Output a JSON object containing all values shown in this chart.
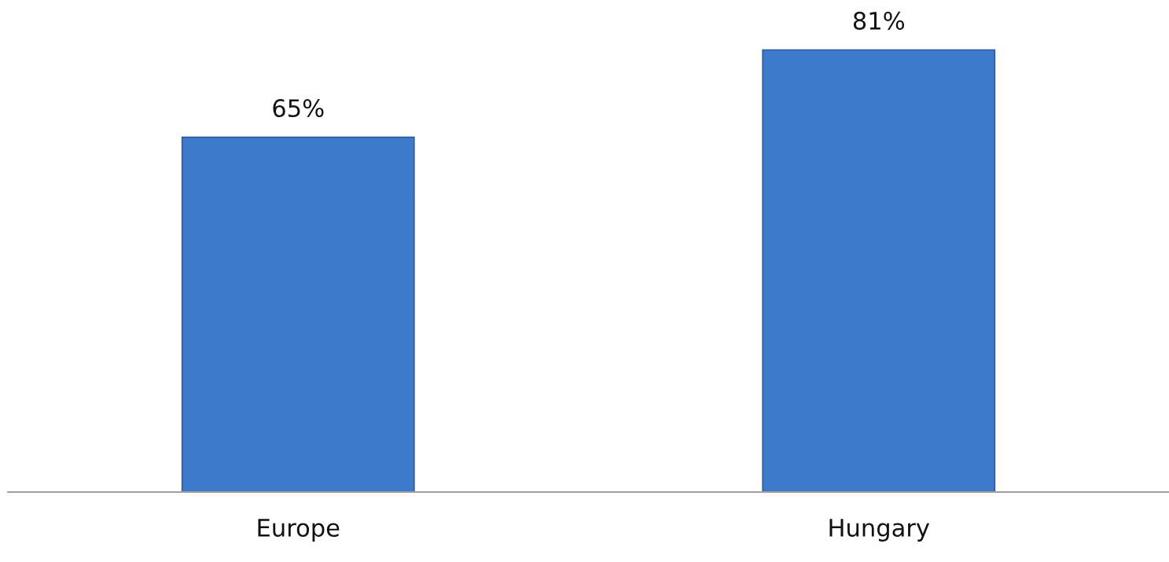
{
  "chart_data": {
    "type": "bar",
    "categories": [
      "Europe",
      "Hungary"
    ],
    "values": [
      65,
      81
    ],
    "value_labels": [
      "65%",
      "81%"
    ],
    "color": "#3d7acb",
    "tick_labels": "x",
    "grid": false,
    "legend": false
  }
}
